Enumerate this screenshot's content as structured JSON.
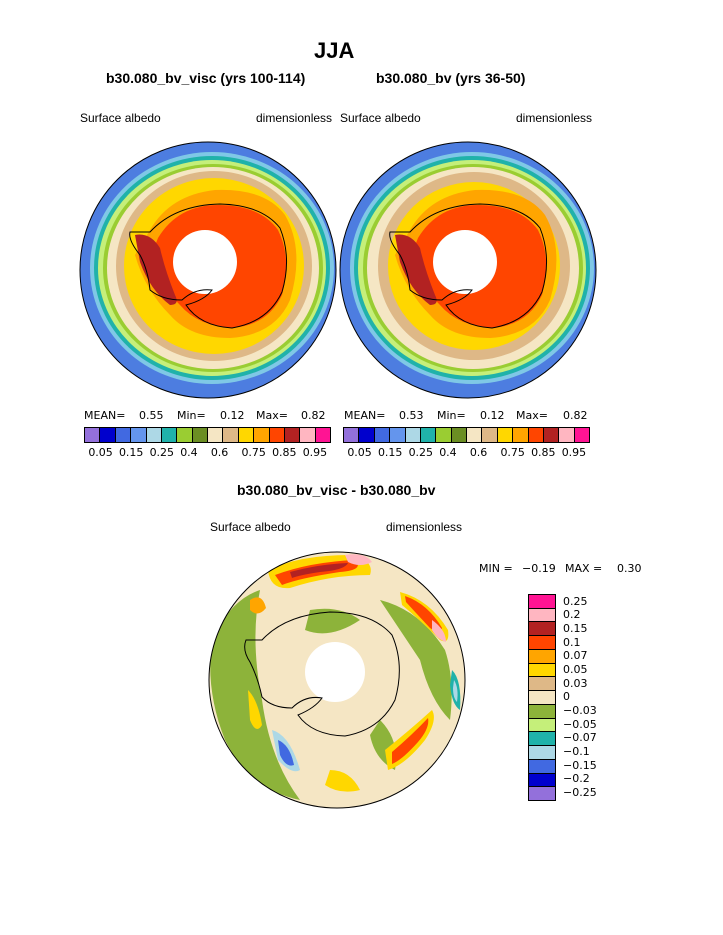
{
  "title": "JJA",
  "panels": [
    {
      "case_title": "b30.080_bv_visc (yrs 100-114)",
      "variable": "Surface albedo",
      "units": "dimensionless",
      "stats": {
        "mean_label": "MEAN=",
        "mean": "0.55",
        "min_label": "Min=",
        "min": "0.12",
        "max_label": "Max=",
        "max": "0.82"
      }
    },
    {
      "case_title": "b30.080_bv (yrs 36-50)",
      "variable": "Surface albedo",
      "units": "dimensionless",
      "stats": {
        "mean_label": "MEAN=",
        "mean": "0.53",
        "min_label": "Min=",
        "min": "0.12",
        "max_label": "Max=",
        "max": "0.82"
      }
    }
  ],
  "albedo_colorbar": {
    "colors": [
      "#9370db",
      "#0000cd",
      "#4169e1",
      "#6495ed",
      "#add8e6",
      "#20b2aa",
      "#9acd32",
      "#6b8e23",
      "#f5e6c4",
      "#deb887",
      "#ffd700",
      "#ffa500",
      "#ff4500",
      "#b22222",
      "#ffb6c1",
      "#ff1493"
    ],
    "labels": [
      "0.05",
      "0.15",
      "0.25",
      "0.4",
      "0.6",
      "0.75",
      "0.85",
      "0.95"
    ]
  },
  "difference": {
    "title": "b30.080_bv_visc - b30.080_bv",
    "variable": "Surface albedo",
    "units": "dimensionless",
    "min_label": "MIN =",
    "min": "−0.19",
    "max_label": "MAX =",
    "max": "0.30",
    "colors": [
      "#ff1493",
      "#ffb6c1",
      "#b22222",
      "#ff4500",
      "#ffa500",
      "#ffd700",
      "#deb887",
      "#f5e6c4",
      "#8db33a",
      "#c5ef7a",
      "#20b2aa",
      "#add8e6",
      "#4169e1",
      "#0000cd",
      "#9370db"
    ],
    "labels": [
      "0.25",
      "0.2",
      "0.15",
      "0.1",
      "0.07",
      "0.05",
      "0.03",
      "0",
      "−0.03",
      "−0.05",
      "−0.07",
      "−0.1",
      "−0.15",
      "−0.2",
      "−0.25"
    ]
  },
  "chart_data": [
    {
      "type": "heatmap",
      "title": "b30.080_bv_visc (yrs 100-114)",
      "variable": "Surface albedo",
      "units": "dimensionless",
      "mean": 0.55,
      "min": 0.12,
      "max": 0.82,
      "levels": [
        0.05,
        0.1,
        0.15,
        0.2,
        0.25,
        0.3,
        0.4,
        0.5,
        0.6,
        0.7,
        0.75,
        0.8,
        0.85,
        0.9,
        0.95
      ]
    },
    {
      "type": "heatmap",
      "title": "b30.080_bv (yrs 36-50)",
      "variable": "Surface albedo",
      "units": "dimensionless",
      "mean": 0.53,
      "min": 0.12,
      "max": 0.82,
      "levels": [
        0.05,
        0.1,
        0.15,
        0.2,
        0.25,
        0.3,
        0.4,
        0.5,
        0.6,
        0.7,
        0.75,
        0.8,
        0.85,
        0.9,
        0.95
      ]
    },
    {
      "type": "heatmap",
      "title": "b30.080_bv_visc - b30.080_bv",
      "variable": "Surface albedo",
      "units": "dimensionless",
      "min": -0.19,
      "max": 0.3,
      "levels": [
        -0.25,
        -0.2,
        -0.15,
        -0.1,
        -0.07,
        -0.05,
        -0.03,
        0,
        0.03,
        0.05,
        0.07,
        0.1,
        0.15,
        0.2,
        0.25
      ]
    }
  ]
}
